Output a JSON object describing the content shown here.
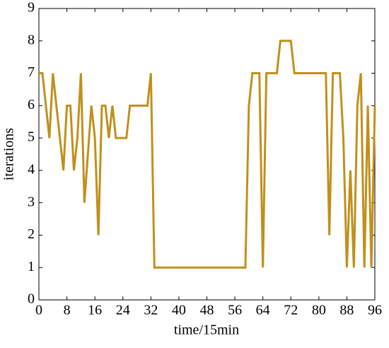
{
  "chart_data": {
    "type": "line",
    "xlabel": "time/15min",
    "ylabel": "iterations",
    "x": [
      0,
      1,
      3,
      4,
      7,
      8,
      9,
      10,
      11,
      12,
      13,
      15,
      16,
      17,
      18,
      19,
      20,
      21,
      22,
      25,
      26,
      31,
      32,
      33,
      59,
      60,
      61,
      63,
      64,
      65,
      68,
      69,
      72,
      73,
      82,
      83,
      84,
      86,
      87,
      88,
      89,
      90,
      91,
      92,
      93,
      94,
      95,
      96
    ],
    "values": [
      7,
      7,
      5,
      7,
      4,
      6,
      6,
      4,
      5,
      7,
      3,
      6,
      5,
      2,
      6,
      6,
      5,
      6,
      5,
      5,
      6,
      6,
      7,
      1,
      1,
      6,
      7,
      7,
      1,
      7,
      7,
      8,
      8,
      7,
      7,
      2,
      7,
      7,
      5,
      1,
      4,
      1,
      6,
      7,
      1,
      6,
      1,
      6
    ],
    "color": "#c0901c",
    "xlim": [
      0,
      96
    ],
    "xticks": [
      0,
      8,
      16,
      24,
      32,
      40,
      48,
      56,
      64,
      72,
      80,
      88,
      96
    ],
    "ylim": [
      0,
      9
    ],
    "yticks": [
      0,
      1,
      2,
      3,
      4,
      5,
      6,
      7,
      8,
      9
    ]
  }
}
